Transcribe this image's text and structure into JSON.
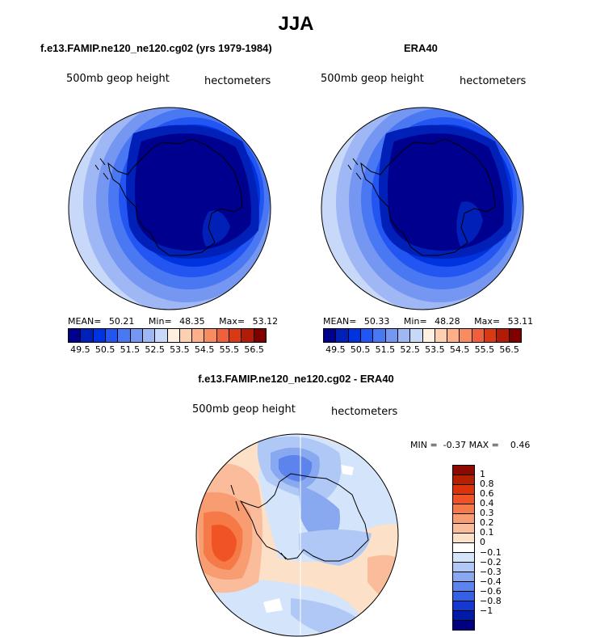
{
  "figure_title": "JJA",
  "left_panel": {
    "title": "f.e13.FAMIP.ne120_ne120.cg02 (yrs 1979-1984)",
    "variable": "500mb geop height",
    "units": "hectometers",
    "stats": {
      "mean_label": "MEAN=",
      "mean": "50.21",
      "min_label": "Min=",
      "min": "48.35",
      "max_label": "Max=",
      "max": "53.12"
    }
  },
  "right_panel": {
    "title": "ERA40",
    "variable": "500mb geop height",
    "units": "hectometers",
    "stats": {
      "mean_label": "MEAN=",
      "mean": "50.33",
      "min_label": "Min=",
      "min": "48.28",
      "max_label": "Max=",
      "max": "53.11"
    }
  },
  "diff_panel": {
    "title": "f.e13.FAMIP.ne120_ne120.cg02 - ERA40",
    "variable": "500mb geop height",
    "units": "hectometers",
    "minmax": "MIN =  -0.37 MAX =    0.46"
  },
  "abs_colorbar": {
    "colors": [
      "#00008f",
      "#0020b8",
      "#0033e0",
      "#2255f2",
      "#4a78f2",
      "#7597f2",
      "#9fb7f5",
      "#c8d8f8",
      "#fff0e0",
      "#fcd0b0",
      "#fcaf89",
      "#f98b60",
      "#f0603a",
      "#d83a16",
      "#b21c06",
      "#800000"
    ],
    "ticks": [
      "49.5",
      "50.5",
      "51.5",
      "52.5",
      "53.5",
      "54.5",
      "55.5",
      "56.5"
    ]
  },
  "diff_colorbar": {
    "colors": [
      "#8c0a00",
      "#b42000",
      "#dc3408",
      "#f05424",
      "#f57a48",
      "#f89c72",
      "#fbbc9c",
      "#fde0c8",
      "#ffffff",
      "#d4e4fa",
      "#b0c8f5",
      "#88a8f0",
      "#5c84ec",
      "#3460e4",
      "#1438d0",
      "#001aa8",
      "#000080"
    ],
    "ticks": [
      "1",
      "0.8",
      "0.6",
      "0.4",
      "0.3",
      "0.2",
      "0.1",
      "0",
      "−0.1",
      "−0.2",
      "−0.3",
      "−0.4",
      "−0.6",
      "−0.8",
      "−1"
    ]
  }
}
